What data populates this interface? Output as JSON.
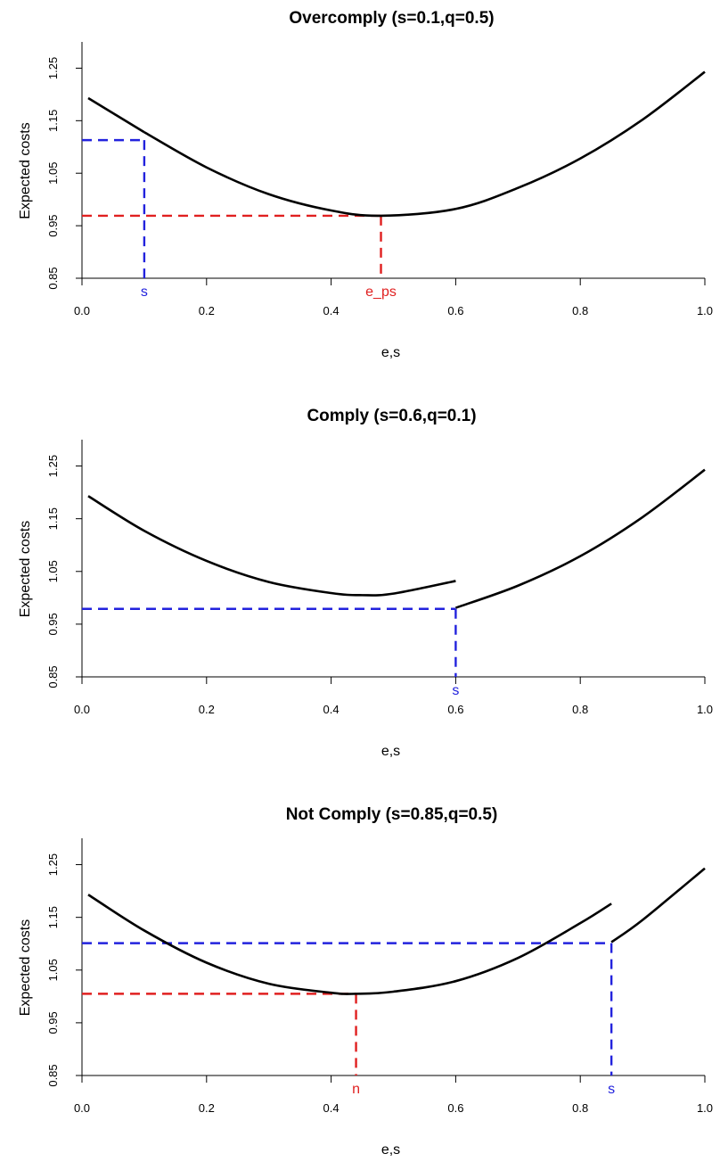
{
  "colors": {
    "ink": "#000000",
    "blue": "#2222dd",
    "red": "#e02020"
  },
  "chart_data": [
    {
      "type": "line",
      "title": "Overcomply (s=0.1,q=0.5)",
      "xlabel": "e,s",
      "ylabel": "Expected costs",
      "xlim": [
        0,
        1
      ],
      "ylim": [
        0.85,
        1.3
      ],
      "xticks": [
        0.0,
        0.2,
        0.4,
        0.6,
        0.8,
        1.0
      ],
      "xtick_labels": [
        "0.0",
        "0.2",
        "0.4",
        "0.6",
        "0.8",
        "1.0"
      ],
      "yticks": [
        0.85,
        0.95,
        1.05,
        1.15,
        1.25
      ],
      "ytick_labels": [
        "0.85",
        "0.95",
        "1.05",
        "1.15",
        "1.25"
      ],
      "series": [
        {
          "x": [
            0.01,
            0.1
          ],
          "y": [
            1.193,
            1.128
          ]
        },
        {
          "x": [
            0.1,
            0.2,
            0.3,
            0.4,
            0.48,
            0.6,
            0.7,
            0.8,
            0.9,
            1.0
          ],
          "y": [
            1.128,
            1.061,
            1.01,
            0.979,
            0.969,
            0.982,
            1.022,
            1.078,
            1.152,
            1.243
          ]
        }
      ],
      "markers": [
        {
          "label": "s",
          "color": "blue",
          "x": 0.1,
          "y": 1.113
        },
        {
          "label": "e_ps",
          "color": "red",
          "x": 0.48,
          "y": 0.969
        }
      ],
      "grid": false
    },
    {
      "type": "line",
      "title": "Comply (s=0.6,q=0.1)",
      "xlabel": "e,s",
      "ylabel": "Expected costs",
      "xlim": [
        0,
        1
      ],
      "ylim": [
        0.85,
        1.3
      ],
      "xticks": [
        0.0,
        0.2,
        0.4,
        0.6,
        0.8,
        1.0
      ],
      "xtick_labels": [
        "0.0",
        "0.2",
        "0.4",
        "0.6",
        "0.8",
        "1.0"
      ],
      "yticks": [
        0.85,
        0.95,
        1.05,
        1.15,
        1.25
      ],
      "ytick_labels": [
        "0.85",
        "0.95",
        "1.05",
        "1.15",
        "1.25"
      ],
      "series": [
        {
          "x": [
            0.01,
            0.1,
            0.2,
            0.3,
            0.4,
            0.45,
            0.5,
            0.6
          ],
          "y": [
            1.193,
            1.127,
            1.07,
            1.03,
            1.009,
            1.005,
            1.008,
            1.032
          ]
        },
        {
          "x": [
            0.6,
            0.7,
            0.8,
            0.9,
            1.0
          ],
          "y": [
            0.981,
            1.023,
            1.079,
            1.153,
            1.243
          ]
        }
      ],
      "markers": [
        {
          "label": "s",
          "color": "blue",
          "x": 0.6,
          "y": 0.979
        }
      ],
      "grid": false
    },
    {
      "type": "line",
      "title": "Not Comply (s=0.85,q=0.5)",
      "xlabel": "e,s",
      "ylabel": "Expected costs",
      "xlim": [
        0,
        1
      ],
      "ylim": [
        0.85,
        1.3
      ],
      "xticks": [
        0.0,
        0.2,
        0.4,
        0.6,
        0.8,
        1.0
      ],
      "xtick_labels": [
        "0.0",
        "0.2",
        "0.4",
        "0.6",
        "0.8",
        "1.0"
      ],
      "yticks": [
        0.85,
        0.95,
        1.05,
        1.15,
        1.25
      ],
      "ytick_labels": [
        "0.85",
        "0.95",
        "1.05",
        "1.15",
        "1.25"
      ],
      "series": [
        {
          "x": [
            0.01,
            0.1,
            0.2,
            0.3,
            0.4,
            0.44,
            0.5,
            0.6,
            0.7,
            0.8,
            0.85
          ],
          "y": [
            1.193,
            1.125,
            1.064,
            1.024,
            1.007,
            1.005,
            1.009,
            1.029,
            1.073,
            1.139,
            1.176
          ]
        },
        {
          "x": [
            0.85,
            0.9,
            1.0
          ],
          "y": [
            1.103,
            1.145,
            1.243
          ]
        }
      ],
      "markers": [
        {
          "label": "n",
          "color": "red",
          "x": 0.44,
          "y": 1.005
        },
        {
          "label": "s",
          "color": "blue",
          "x": 0.85,
          "y": 1.101
        }
      ],
      "grid": false
    }
  ]
}
